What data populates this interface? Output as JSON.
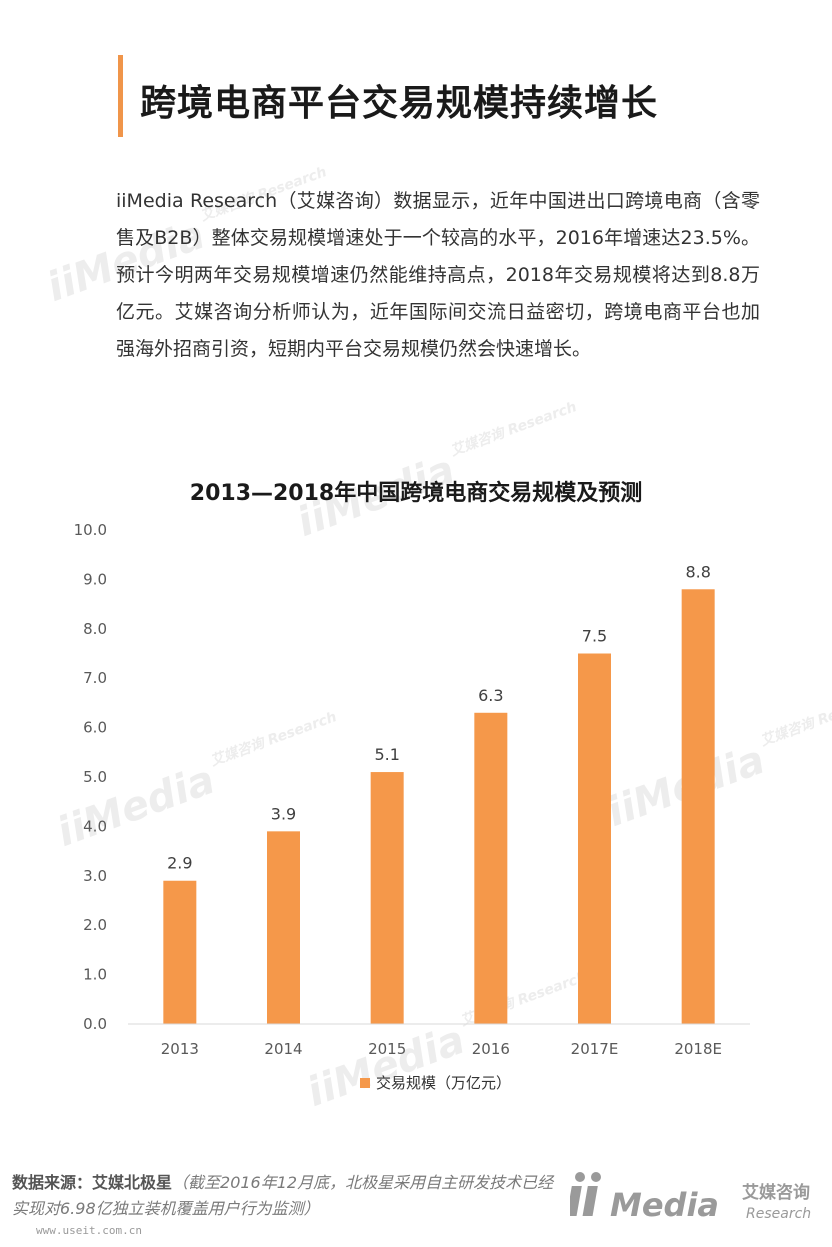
{
  "page": {
    "title": "跨境电商平台交易规模持续增长",
    "intro": "iiMedia Research（艾媒咨询）数据显示，近年中国进出口跨境电商（含零售及B2B）整体交易规模增速处于一个较高的水平，2016年增速达23.5%。预计今明两年交易规模增速仍然能维持高点，2018年交易规模将达到8.8万亿元。艾媒咨询分析师认为，近年国际间交流日益密切，跨境电商平台也加强海外招商引资，短期内平台交易规模仍然会快速增长。"
  },
  "watermark": {
    "text": "iiMedia",
    "sub": "艾媒咨询 Research"
  },
  "chart_data": {
    "type": "bar",
    "title": "2013—2018年中国跨境电商交易规模及预测",
    "categories": [
      "2013",
      "2014",
      "2015",
      "2016",
      "2017E",
      "2018E"
    ],
    "series": [
      {
        "name": "交易规模（万亿元）",
        "values": [
          2.9,
          3.9,
          5.1,
          6.3,
          7.5,
          8.8
        ],
        "color": "#f5984a"
      }
    ],
    "data_labels": [
      "2.9",
      "3.9",
      "5.1",
      "6.3",
      "7.5",
      "8.8"
    ],
    "ylim": [
      0,
      10
    ],
    "yticks": [
      "0.0",
      "1.0",
      "2.0",
      "3.0",
      "4.0",
      "5.0",
      "6.0",
      "7.0",
      "8.0",
      "9.0",
      "10.0"
    ],
    "grid": false,
    "legend_position": "bottom"
  },
  "footer": {
    "source_label": "数据来源：艾媒北极星",
    "source_note": "（截至2016年12月底，北极星采用自主研发技术已经实现对6.98亿独立装机覆盖用户行为监测）",
    "url": "www.useit.com.cn",
    "logo_text": "iiMedia",
    "logo_cn": "艾媒咨询",
    "logo_en": "Research"
  },
  "colors": {
    "accent": "#f0954a",
    "bar": "#f5984a",
    "axis": "#d9d9d9",
    "tick_text": "#595959"
  }
}
